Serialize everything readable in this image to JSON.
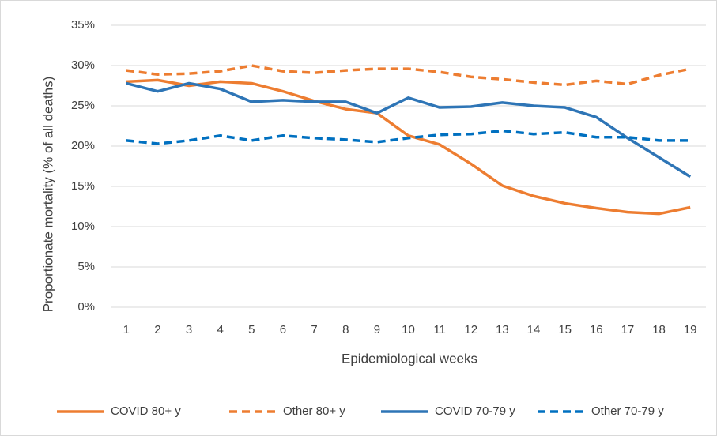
{
  "chart_data": {
    "type": "line",
    "x_label": "Epidemiological weeks",
    "y_label": "Proportionate mortality (% of all deaths)",
    "categories": [
      "1",
      "2",
      "3",
      "4",
      "5",
      "6",
      "7",
      "8",
      "9",
      "10",
      "11",
      "12",
      "13",
      "14",
      "15",
      "16",
      "17",
      "18",
      "19"
    ],
    "ylim": [
      0,
      35
    ],
    "yticks": [
      {
        "value": 0,
        "label": "0%"
      },
      {
        "value": 5,
        "label": "5%"
      },
      {
        "value": 10,
        "label": "10%"
      },
      {
        "value": 15,
        "label": "15%"
      },
      {
        "value": 20,
        "label": "20%"
      },
      {
        "value": 25,
        "label": "25%"
      },
      {
        "value": 30,
        "label": "30%"
      },
      {
        "value": 35,
        "label": "35%"
      }
    ],
    "grid": true,
    "legend": "bottom",
    "series": [
      {
        "name": "COVID 80+ y",
        "color": "#ed7d31",
        "dashed": false,
        "values": [
          28.0,
          28.2,
          27.5,
          28.0,
          27.8,
          26.8,
          25.6,
          24.6,
          24.1,
          21.3,
          20.2,
          17.8,
          15.1,
          13.8,
          12.9,
          12.3,
          11.8,
          11.6,
          12.4
        ]
      },
      {
        "name": "Other 80+ y",
        "color": "#ed7d31",
        "dashed": true,
        "values": [
          29.4,
          28.9,
          29.0,
          29.3,
          30.0,
          29.3,
          29.1,
          29.4,
          29.6,
          29.6,
          29.2,
          28.6,
          28.3,
          27.9,
          27.6,
          28.1,
          27.7,
          28.8,
          29.6
        ]
      },
      {
        "name": "COVID 70-79 y",
        "color": "#2e75b6",
        "dashed": false,
        "values": [
          27.8,
          26.8,
          27.8,
          27.1,
          25.5,
          25.7,
          25.5,
          25.5,
          24.1,
          26.0,
          24.8,
          24.9,
          25.4,
          25.0,
          24.8,
          23.6,
          21.0,
          18.6,
          16.2
        ]
      },
      {
        "name": "Other 70-79 y",
        "color": "#0070c0",
        "dashed": true,
        "values": [
          20.7,
          20.3,
          20.7,
          21.3,
          20.7,
          21.3,
          21.0,
          20.8,
          20.5,
          21.0,
          21.4,
          21.5,
          21.9,
          21.5,
          21.7,
          21.1,
          21.1,
          20.7,
          20.7
        ]
      }
    ]
  }
}
